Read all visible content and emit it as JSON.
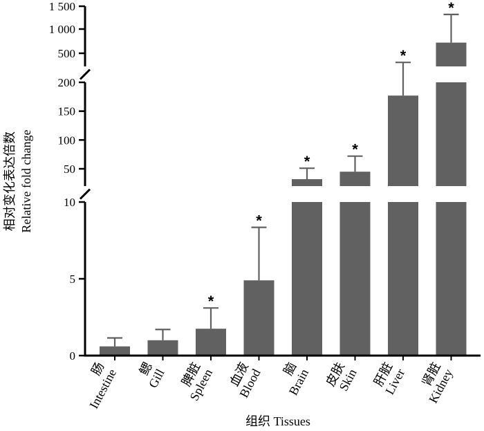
{
  "chart_data": {
    "type": "bar",
    "xlabel": "组织 Tissues",
    "ylabel_cn": "相对变化表达倍数",
    "ylabel_en": "Relative fold change",
    "axis_breaks": true,
    "segments": [
      {
        "name": "low",
        "range": [
          0,
          10
        ],
        "ticks": [
          0,
          5,
          10
        ],
        "tick_labels": [
          "0",
          "5",
          "10"
        ]
      },
      {
        "name": "mid",
        "range": [
          20,
          200
        ],
        "ticks": [
          50,
          100,
          150,
          200
        ],
        "tick_labels": [
          "50",
          "100",
          "150",
          "200"
        ]
      },
      {
        "name": "high",
        "range": [
          200,
          1500
        ],
        "ticks": [
          500,
          1000,
          1500
        ],
        "tick_labels": [
          "500",
          "1 000",
          "1 500"
        ]
      }
    ],
    "categories": [
      {
        "cn": "肠",
        "en": "Intestine"
      },
      {
        "cn": "鳃",
        "en": "Gill"
      },
      {
        "cn": "脾脏",
        "en": "Spleen"
      },
      {
        "cn": "血液",
        "en": "Blood"
      },
      {
        "cn": "脑",
        "en": "Brain"
      },
      {
        "cn": "皮肤",
        "en": "Skin"
      },
      {
        "cn": "肝脏",
        "en": "Liver"
      },
      {
        "cn": "肾脏",
        "en": "Kidney"
      }
    ],
    "values": [
      0.6,
      1.0,
      1.75,
      4.9,
      32,
      45,
      177,
      720
    ],
    "errors": [
      0.55,
      0.7,
      1.35,
      3.45,
      19,
      27,
      115,
      600
    ],
    "significance": [
      "",
      "",
      "*",
      "*",
      "*",
      "*",
      "*",
      "*"
    ],
    "bar_color": "#616161"
  }
}
